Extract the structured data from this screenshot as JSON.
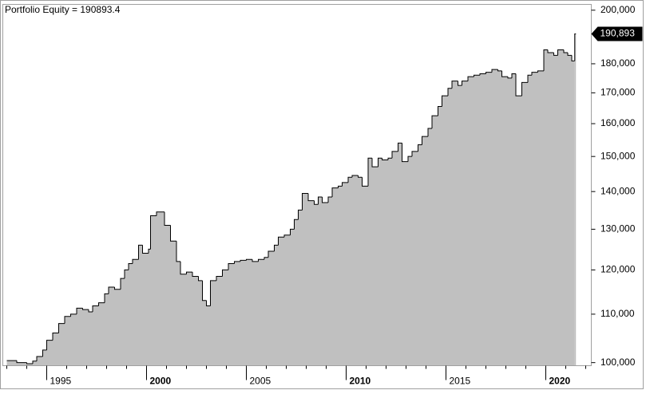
{
  "chart_data": {
    "type": "step-area",
    "title": "Portfolio Equity = 190893.4",
    "log_scale": true,
    "color": "#c0c0c0",
    "line_color": "#000000",
    "x": [
      1993.0,
      1993.5,
      1994.0,
      1994.3,
      1994.5,
      1994.8,
      1995.0,
      1995.3,
      1995.6,
      1995.9,
      1996.2,
      1996.5,
      1996.8,
      1997.1,
      1997.3,
      1997.6,
      1997.9,
      1998.1,
      1998.4,
      1998.7,
      1998.9,
      1999.1,
      1999.3,
      1999.6,
      1999.8,
      2000.1,
      2000.2,
      2000.5,
      2000.9,
      2001.2,
      2001.5,
      2001.7,
      2002.0,
      2002.3,
      2002.6,
      2002.8,
      2003.0,
      2003.2,
      2003.5,
      2003.8,
      2004.1,
      2004.4,
      2004.7,
      2005.0,
      2005.3,
      2005.6,
      2005.9,
      2006.1,
      2006.4,
      2006.6,
      2006.9,
      2007.2,
      2007.4,
      2007.6,
      2007.8,
      2008.1,
      2008.4,
      2008.6,
      2008.8,
      2009.1,
      2009.3,
      2009.6,
      2009.8,
      2010.1,
      2010.3,
      2010.6,
      2010.8,
      2011.1,
      2011.3,
      2011.6,
      2011.8,
      2012.1,
      2012.3,
      2012.6,
      2012.8,
      2013.1,
      2013.3,
      2013.6,
      2013.8,
      2014.1,
      2014.3,
      2014.6,
      2014.8,
      2015.1,
      2015.3,
      2015.6,
      2015.8,
      2016.1,
      2016.4,
      2016.7,
      2017.0,
      2017.3,
      2017.6,
      2017.8,
      2018.1,
      2018.3,
      2018.5,
      2018.8,
      2019.1,
      2019.3,
      2019.6,
      2019.9,
      2020.1,
      2020.4,
      2020.6,
      2020.9,
      2021.1,
      2021.3,
      2021.45
    ],
    "values": [
      100400,
      100000,
      99800,
      100300,
      101200,
      102500,
      104500,
      106000,
      108000,
      109500,
      110000,
      111300,
      111000,
      110500,
      111800,
      112500,
      114500,
      116000,
      115500,
      118000,
      120000,
      121500,
      122500,
      126000,
      124000,
      125000,
      133500,
      134500,
      131000,
      127000,
      122000,
      119000,
      119500,
      118500,
      117500,
      113000,
      111800,
      117500,
      118500,
      120000,
      121500,
      122000,
      122300,
      122500,
      122000,
      122500,
      123000,
      124500,
      126000,
      128000,
      128500,
      130000,
      132500,
      135000,
      139500,
      137500,
      136500,
      138500,
      137000,
      138500,
      141000,
      141500,
      142500,
      144000,
      144500,
      144000,
      141500,
      149500,
      147000,
      149500,
      149000,
      149500,
      151500,
      154000,
      148500,
      150000,
      151500,
      153500,
      156000,
      158500,
      162500,
      165500,
      169000,
      171500,
      174000,
      172500,
      174000,
      175500,
      176000,
      176500,
      177000,
      178000,
      177500,
      175500,
      175000,
      176500,
      169000,
      173500,
      176000,
      177000,
      177500,
      185000,
      184000,
      183000,
      185000,
      184000,
      183000,
      181000,
      190893
    ],
    "last_label": "190,893",
    "xlim": [
      1992.8,
      2022.28
    ],
    "xticks": [
      1995,
      2000,
      2005,
      2010,
      2015,
      2020
    ],
    "ylim": [
      99400,
      202300
    ],
    "yticks": [
      {
        "value": 100000,
        "label": "100,000"
      },
      {
        "value": 110000,
        "label": "110,000"
      },
      {
        "value": 120000,
        "label": "120,000"
      },
      {
        "value": 130000,
        "label": "130,000"
      },
      {
        "value": 140000,
        "label": "140,000"
      },
      {
        "value": 150000,
        "label": "150,000"
      },
      {
        "value": 160000,
        "label": "160,000"
      },
      {
        "value": 170000,
        "label": "170,000"
      },
      {
        "value": 180000,
        "label": "180,000"
      },
      {
        "value": 200000,
        "label": "200,000"
      }
    ]
  }
}
